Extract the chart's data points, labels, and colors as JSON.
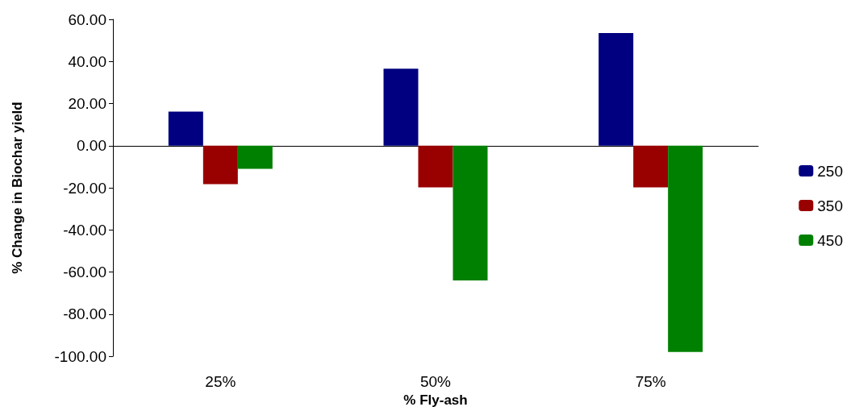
{
  "chart_data": {
    "type": "bar",
    "xlabel": "% Fly-ash",
    "ylabel": "% Change in Biochar yield",
    "categories": [
      "25%",
      "50%",
      "75%"
    ],
    "series": [
      {
        "name": "250",
        "color": "#000080",
        "values": [
          16.2,
          36.6,
          53.5
        ]
      },
      {
        "name": "350",
        "color": "#990000",
        "values": [
          -18.3,
          -19.8,
          -19.8
        ]
      },
      {
        "name": "450",
        "color": "#008000",
        "values": [
          -11.0,
          -64.0,
          -98.0
        ]
      }
    ],
    "ylim": [
      -100,
      60
    ],
    "yticks": [
      {
        "value": -100,
        "label": "-100.00"
      },
      {
        "value": -80,
        "label": "-80.00"
      },
      {
        "value": -60,
        "label": "-60.00"
      },
      {
        "value": -40,
        "label": "-40.00"
      },
      {
        "value": -20,
        "label": "-20.00"
      },
      {
        "value": 0,
        "label": "0.00"
      },
      {
        "value": 20,
        "label": "20.00"
      },
      {
        "value": 40,
        "label": "40.00"
      },
      {
        "value": 60,
        "label": "60.00"
      }
    ],
    "legend": "right"
  }
}
